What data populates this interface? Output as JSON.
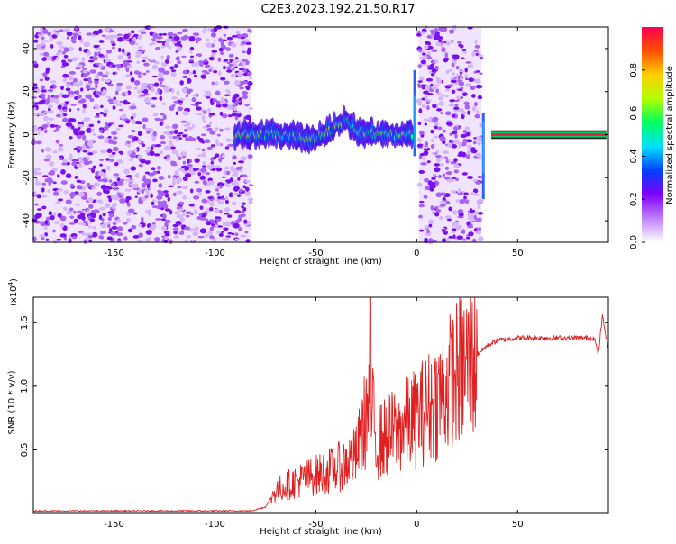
{
  "title": "C2E3.2023.192.21.50.R17",
  "chart_data": [
    {
      "type": "heatmap",
      "title": "C2E3.2023.192.21.50.R17",
      "xlabel": "Height of straight line (km)",
      "ylabel": "Frequency (Hz)",
      "xlim": [
        -190,
        95
      ],
      "ylim": [
        -50,
        50
      ],
      "x_ticks": [
        -150,
        -100,
        -50,
        0,
        50
      ],
      "y_ticks": [
        -40,
        -20,
        0,
        20,
        40
      ],
      "colorbar": {
        "label": "Normalized spectral amplitude",
        "range": [
          0,
          1
        ],
        "ticks": [
          "0.0",
          "0.2",
          "0.4",
          "0.6",
          "0.8"
        ],
        "colors": [
          "#ffffff",
          "#c080ff",
          "#8000ff",
          "#0040ff",
          "#00e0ff",
          "#00ff60",
          "#b0ff00",
          "#ffd000",
          "#ff5000",
          "#ff0050"
        ]
      },
      "regions": [
        {
          "name": "noise",
          "x_range": [
            -190,
            -82
          ],
          "f_range": [
            -50,
            50
          ],
          "amplitude": 0.1
        },
        {
          "name": "meteor trail",
          "x_range": [
            -90,
            -2
          ],
          "center_freq": [
            [
              -90,
              0
            ],
            [
              -70,
              0
            ],
            [
              -50,
              -2
            ],
            [
              -35,
              7
            ],
            [
              -30,
              2
            ],
            [
              -20,
              0
            ],
            [
              -5,
              0
            ]
          ],
          "amplitude": 0.6
        },
        {
          "name": "noise",
          "x_range": [
            1,
            32
          ],
          "f_range": [
            -50,
            50
          ],
          "amplitude": 0.12
        },
        {
          "name": "carrier",
          "x_range": [
            37,
            94
          ],
          "center_freq": 0,
          "amplitude": 1.0
        }
      ]
    },
    {
      "type": "line",
      "xlabel": "Height of straight line (km)",
      "ylabel": "SNR (10 * v/v)",
      "multiplier_label": "(x10",
      "multiplier_exp": "4",
      "xlim": [
        -190,
        95
      ],
      "ylim": [
        0,
        1.7
      ],
      "x_ticks": [
        -150,
        -100,
        -50,
        0,
        50
      ],
      "y_ticks": [
        "0.5",
        "1.0",
        "1.5"
      ],
      "y_tick_values": [
        0.5,
        1.0,
        1.5
      ],
      "color": "#e02020",
      "x": [
        -190,
        -160,
        -130,
        -100,
        -82,
        -75,
        -70,
        -60,
        -50,
        -40,
        -30,
        -23,
        -20,
        -10,
        0,
        10,
        20,
        30,
        35,
        40,
        50,
        60,
        70,
        80,
        88,
        90,
        92,
        95
      ],
      "y": [
        0.02,
        0.02,
        0.02,
        0.02,
        0.02,
        0.05,
        0.18,
        0.25,
        0.3,
        0.35,
        0.45,
        0.9,
        0.55,
        0.65,
        0.75,
        0.9,
        1.1,
        1.25,
        1.32,
        1.36,
        1.38,
        1.38,
        1.38,
        1.38,
        1.38,
        1.25,
        1.55,
        1.3
      ]
    }
  ]
}
